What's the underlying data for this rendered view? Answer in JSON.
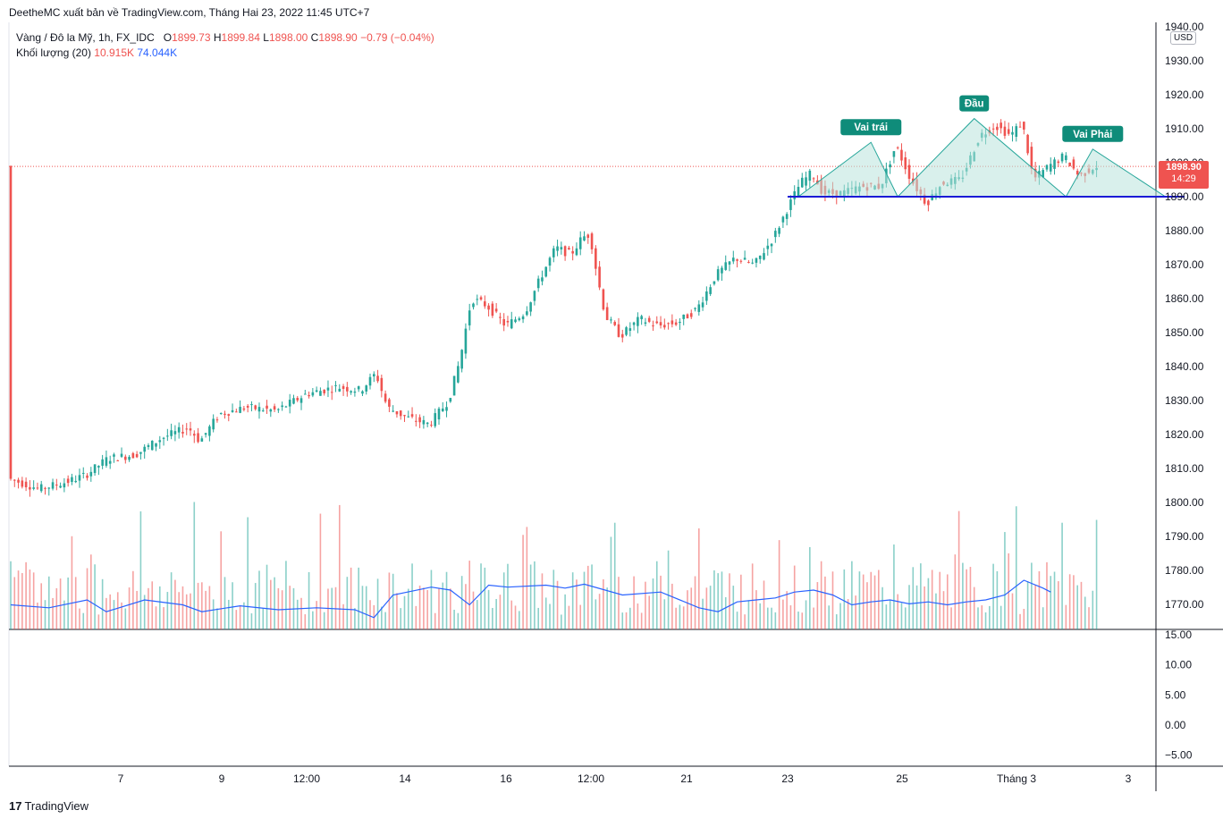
{
  "header": {
    "publisher": "DeetheMC xuất bản về TradingView.com, Tháng Hai 23, 2022 11:45 UTC+7",
    "symbol": "Vàng / Đô la Mỹ, 1h, FX_IDC",
    "o_label": "O",
    "o": "1899.73",
    "h_label": "H",
    "h": "1899.84",
    "l_label": "L",
    "l": "1898.00",
    "c_label": "C",
    "c": "1898.90",
    "change": "−0.79 (−0.04%)",
    "volume_label": "Khối lượng (20)",
    "volume": "10.915K",
    "volume_ma": "74.044K"
  },
  "currency": "USD",
  "last_price": {
    "price": "1898.90",
    "countdown": "14:29"
  },
  "footer": {
    "logo_mark": "17",
    "logo_text": "TradingView"
  },
  "colors": {
    "up": "#26a69a",
    "down": "#ef5350",
    "pattern_fill": "#b9e3dd",
    "pattern_line": "#26a69a",
    "neckline": "#1a1ad6",
    "volume_ma": "#2962ff",
    "label_bg": "#0f8c7a"
  },
  "chart_data": {
    "type": "candlestick",
    "price_axis": {
      "ticks": [
        "1940.00",
        "1930.00",
        "1920.00",
        "1910.00",
        "1900.00",
        "1890.00",
        "1880.00",
        "1870.00",
        "1860.00",
        "1850.00",
        "1840.00",
        "1830.00",
        "1820.00",
        "1810.00",
        "1800.00",
        "1790.00",
        "1780.00",
        "1770.00"
      ],
      "ylim": [
        1765,
        1941
      ]
    },
    "indicator_axis": {
      "ticks": [
        "15.00",
        "10.00",
        "5.00",
        "0.00",
        "−5.00"
      ],
      "ylim": [
        -7,
        16
      ]
    },
    "x_axis": {
      "ticks": [
        "7",
        "9",
        "12:00",
        "14",
        "16",
        "12:00",
        "21",
        "23",
        "25",
        "Tháng 3",
        "3"
      ]
    },
    "price_trend": [
      [
        0,
        1807
      ],
      [
        8,
        1804
      ],
      [
        15,
        1806
      ],
      [
        20,
        1808
      ],
      [
        26,
        1813
      ],
      [
        33,
        1814
      ],
      [
        40,
        1819
      ],
      [
        47,
        1822
      ],
      [
        50,
        1818
      ],
      [
        55,
        1826
      ],
      [
        62,
        1828
      ],
      [
        70,
        1827
      ],
      [
        78,
        1832
      ],
      [
        86,
        1834
      ],
      [
        92,
        1833
      ],
      [
        96,
        1838
      ],
      [
        99,
        1828
      ],
      [
        104,
        1825
      ],
      [
        110,
        1823
      ],
      [
        115,
        1830
      ],
      [
        118,
        1842
      ],
      [
        121,
        1860
      ],
      [
        125,
        1858
      ],
      [
        130,
        1852
      ],
      [
        135,
        1856
      ],
      [
        139,
        1866
      ],
      [
        143,
        1875
      ],
      [
        147,
        1873
      ],
      [
        150,
        1878
      ],
      [
        152,
        1879
      ],
      [
        154,
        1866
      ],
      [
        156,
        1855
      ],
      [
        160,
        1849
      ],
      [
        165,
        1854
      ],
      [
        170,
        1852
      ],
      [
        175,
        1853
      ],
      [
        180,
        1857
      ],
      [
        185,
        1867
      ],
      [
        190,
        1872
      ],
      [
        195,
        1870
      ],
      [
        200,
        1878
      ],
      [
        203,
        1885
      ],
      [
        207,
        1894
      ],
      [
        210,
        1897
      ],
      [
        213,
        1891
      ],
      [
        218,
        1891
      ],
      [
        223,
        1893
      ],
      [
        228,
        1893
      ],
      [
        232,
        1905
      ],
      [
        236,
        1895
      ],
      [
        240,
        1888
      ],
      [
        244,
        1894
      ],
      [
        249,
        1895
      ],
      [
        254,
        1908
      ],
      [
        258,
        1911
      ],
      [
        262,
        1908
      ],
      [
        265,
        1912
      ],
      [
        268,
        1895
      ],
      [
        272,
        1899
      ],
      [
        276,
        1902
      ],
      [
        280,
        1896
      ],
      [
        284,
        1899
      ]
    ],
    "pattern": {
      "type": "head-and-shoulders",
      "labels": [
        "Vai trái",
        "Đầu",
        "Vai Phải"
      ],
      "points": [
        [
          206,
          1890
        ],
        [
          225,
          1906
        ],
        [
          232,
          1890
        ],
        [
          252,
          1913
        ],
        [
          276,
          1890
        ],
        [
          283,
          1904
        ],
        [
          302,
          1890
        ]
      ],
      "neckline": [
        [
          206,
          1890
        ],
        [
          307,
          1890
        ]
      ]
    },
    "volume_ma_trend": [
      [
        0,
        0.25
      ],
      [
        10,
        0.22
      ],
      [
        20,
        0.3
      ],
      [
        25,
        0.18
      ],
      [
        35,
        0.3
      ],
      [
        45,
        0.25
      ],
      [
        50,
        0.18
      ],
      [
        60,
        0.24
      ],
      [
        70,
        0.2
      ],
      [
        80,
        0.22
      ],
      [
        90,
        0.2
      ],
      [
        95,
        0.12
      ],
      [
        100,
        0.35
      ],
      [
        110,
        0.43
      ],
      [
        115,
        0.4
      ],
      [
        120,
        0.25
      ],
      [
        125,
        0.45
      ],
      [
        130,
        0.43
      ],
      [
        140,
        0.45
      ],
      [
        145,
        0.42
      ],
      [
        150,
        0.46
      ],
      [
        160,
        0.35
      ],
      [
        170,
        0.38
      ],
      [
        180,
        0.22
      ],
      [
        185,
        0.18
      ],
      [
        190,
        0.28
      ],
      [
        195,
        0.3
      ],
      [
        200,
        0.32
      ],
      [
        205,
        0.38
      ],
      [
        210,
        0.4
      ],
      [
        215,
        0.35
      ],
      [
        220,
        0.25
      ],
      [
        225,
        0.28
      ],
      [
        230,
        0.3
      ],
      [
        235,
        0.26
      ],
      [
        240,
        0.28
      ],
      [
        245,
        0.25
      ],
      [
        250,
        0.28
      ],
      [
        255,
        0.3
      ],
      [
        260,
        0.35
      ],
      [
        265,
        0.5
      ],
      [
        270,
        0.42
      ],
      [
        272,
        0.38
      ]
    ]
  }
}
